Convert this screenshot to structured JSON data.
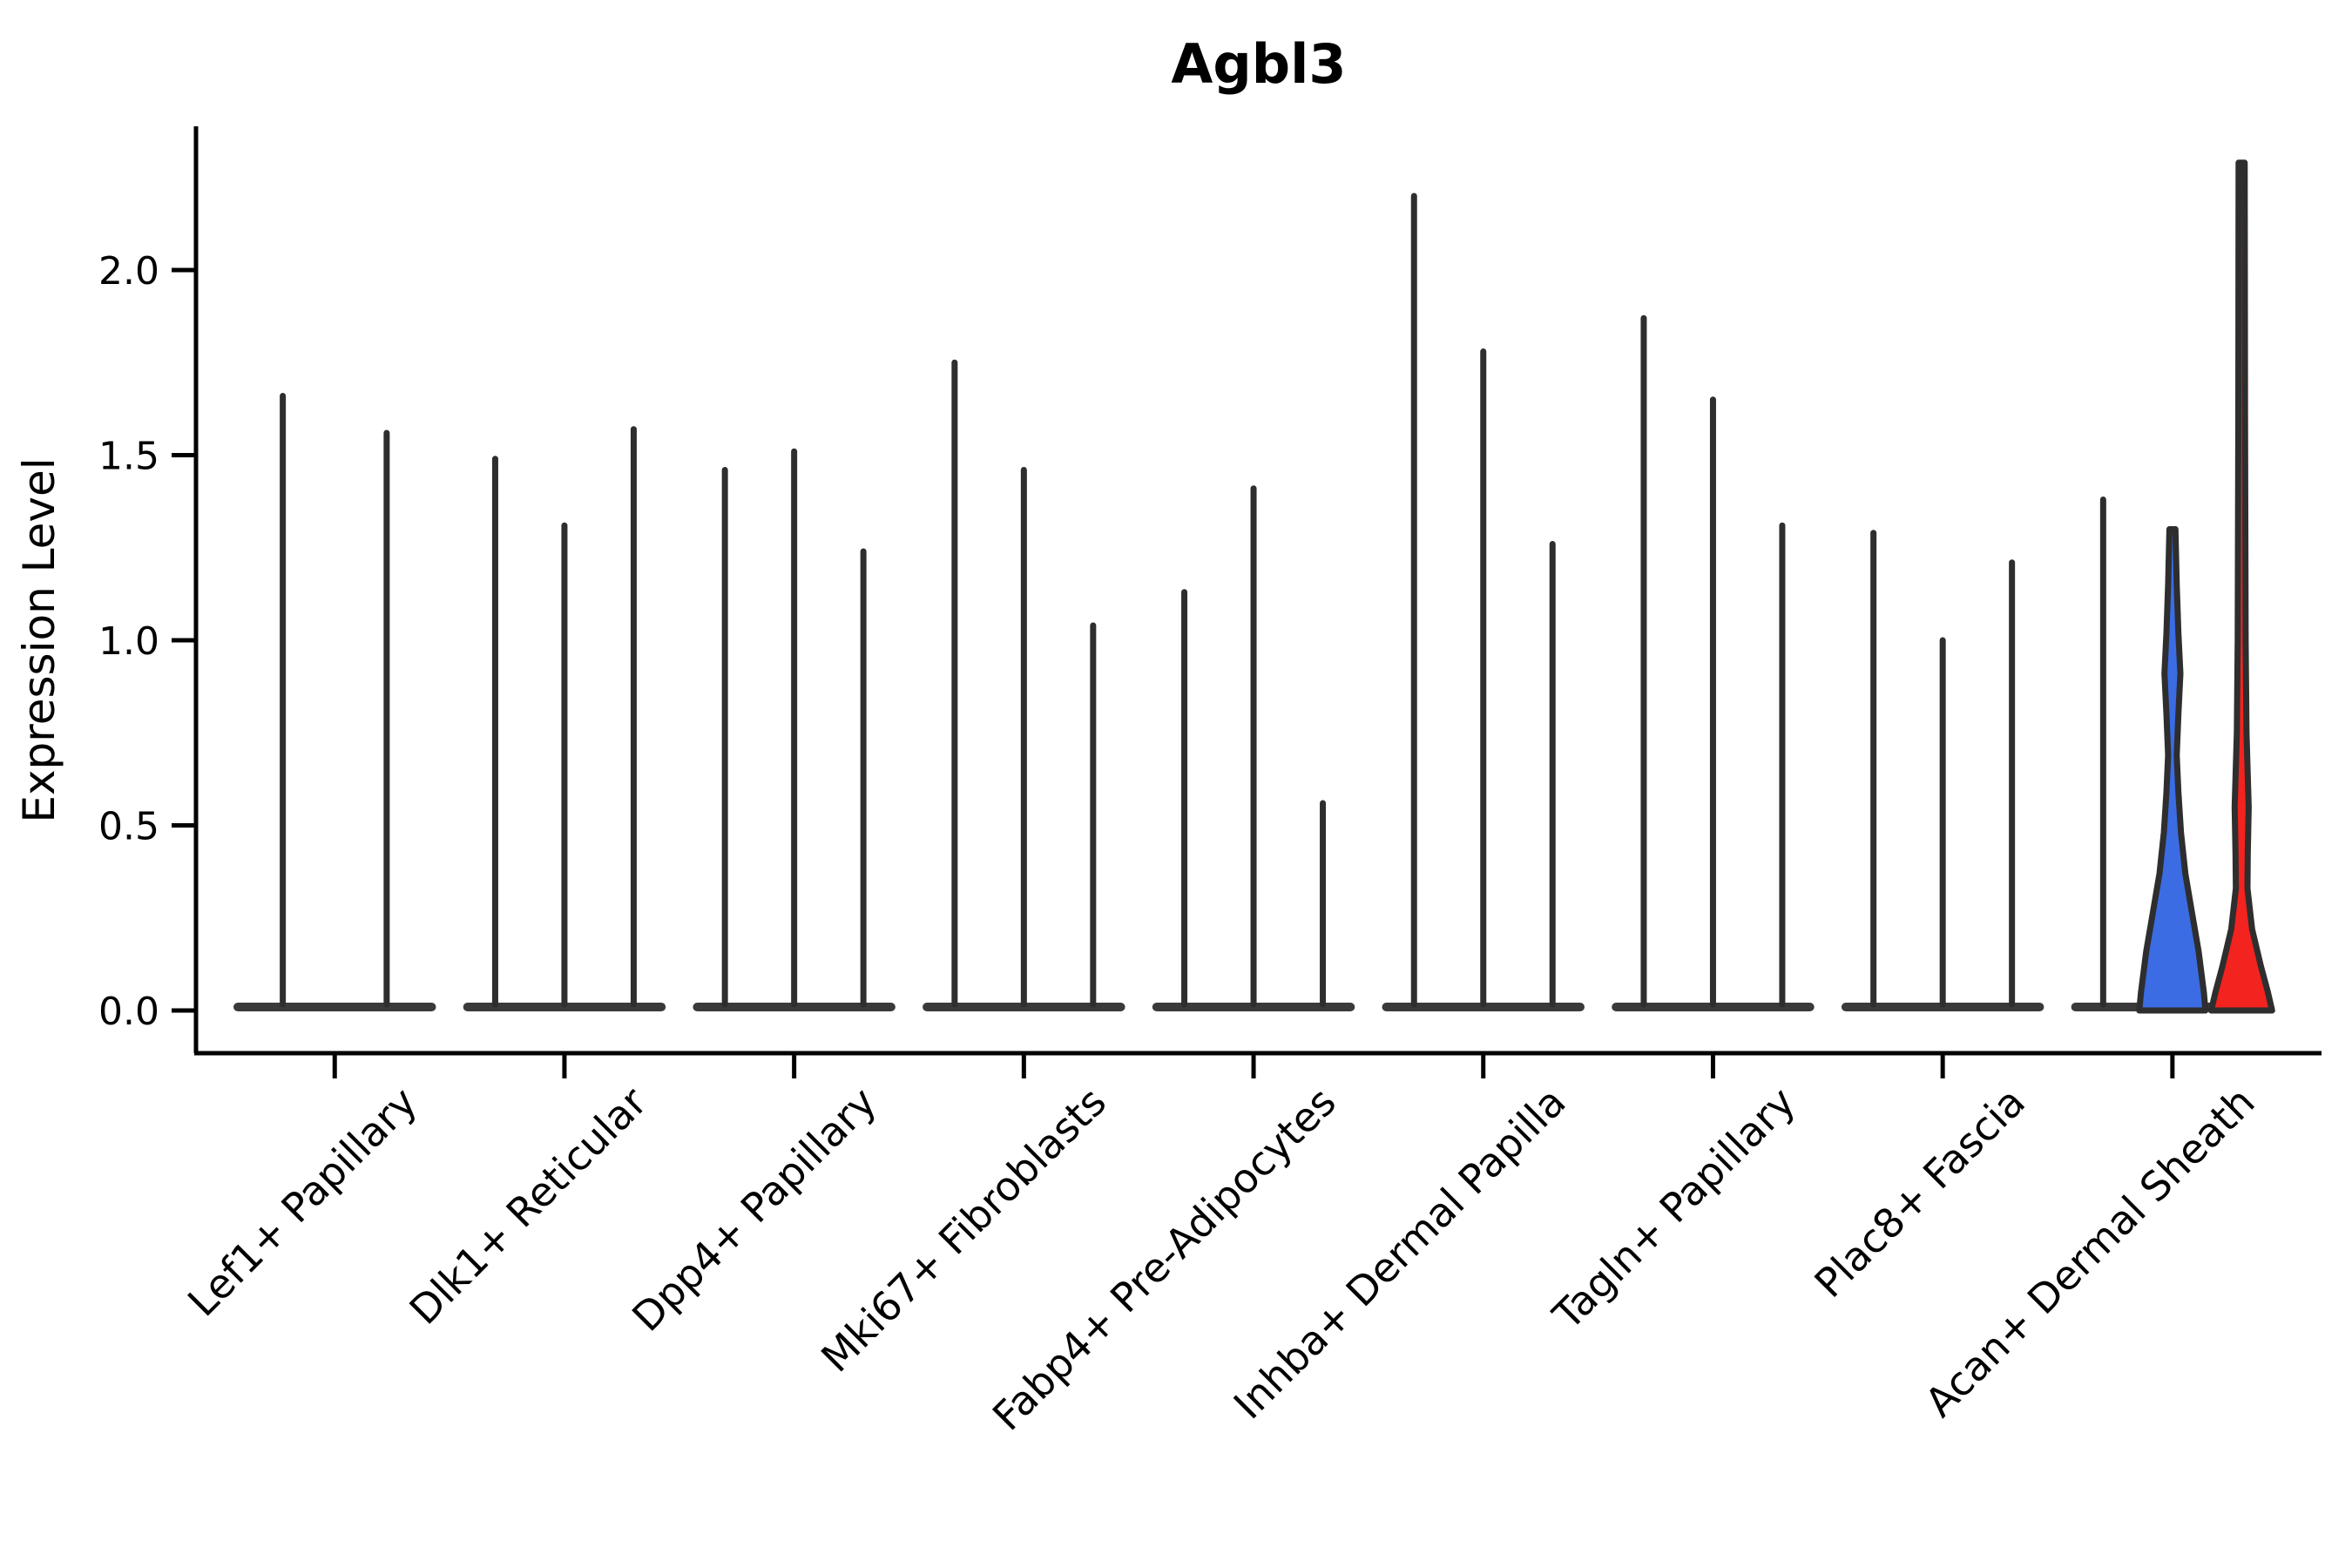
{
  "chart_data": {
    "type": "violin",
    "title": "Agbl3",
    "ylabel": "Expression Level",
    "xlabel": "",
    "grid": false,
    "legend": null,
    "ylim": [
      -0.12,
      2.39
    ],
    "yticks": [
      0.0,
      0.5,
      1.0,
      1.5,
      2.0
    ],
    "ytick_labels": [
      "0.0",
      "0.5",
      "1.0",
      "1.5",
      "2.0"
    ],
    "categories": [
      "Lef1+ Papillary",
      "Dlk1+ Reticular",
      "Dpp4+ Papillary",
      "Mki67+ Fibroblasts",
      "Fabp4+ Pre-Adipocytes",
      "Inhba+ Dermal Papilla",
      "Tagln+ Papillary",
      "Plac8+ Fascia",
      "Acan+ Dermal Sheath"
    ],
    "colors": {
      "spike": "#2e2e2e",
      "baseline": "#3a3a3a",
      "axis": "#000000",
      "outline": "#2e2e2e",
      "blue_violin": "#3b6ce4",
      "red_violin": "#f3231f"
    },
    "groups": [
      {
        "category": "Lef1+ Papillary",
        "violins": [
          {
            "max": 1.66
          },
          {
            "max": 1.56
          }
        ]
      },
      {
        "category": "Dlk1+ Reticular",
        "violins": [
          {
            "max": 1.49
          },
          {
            "max": 1.31
          },
          {
            "max": 1.57
          }
        ]
      },
      {
        "category": "Dpp4+ Papillary",
        "violins": [
          {
            "max": 1.46
          },
          {
            "max": 1.51
          },
          {
            "max": 1.24
          }
        ]
      },
      {
        "category": "Mki67+ Fibroblasts",
        "violins": [
          {
            "max": 1.75
          },
          {
            "max": 1.46
          },
          {
            "max": 1.04
          }
        ]
      },
      {
        "category": "Fabp4+ Pre-Adipocytes",
        "violins": [
          {
            "max": 1.13
          },
          {
            "max": 1.41
          },
          {
            "max": 0.56
          }
        ]
      },
      {
        "category": "Inhba+ Dermal Papilla",
        "violins": [
          {
            "max": 2.2
          },
          {
            "max": 1.78
          },
          {
            "max": 1.26
          }
        ]
      },
      {
        "category": "Tagln+ Papillary",
        "violins": [
          {
            "max": 1.87
          },
          {
            "max": 1.65
          },
          {
            "max": 1.31
          }
        ]
      },
      {
        "category": "Plac8+ Fascia",
        "violins": [
          {
            "max": 1.29
          },
          {
            "max": 1.0
          },
          {
            "max": 1.21
          }
        ]
      },
      {
        "category": "Acan+ Dermal Sheath",
        "violins": [
          {
            "max": 1.38
          },
          {
            "max": 1.3,
            "fill": "blue_violin",
            "base_halfwidth": 38,
            "profile": [
              [
                1.3,
                0.09
              ],
              [
                1.15,
                0.13
              ],
              [
                1.02,
                0.18
              ],
              [
                0.91,
                0.24
              ],
              [
                0.8,
                0.18
              ],
              [
                0.69,
                0.13
              ],
              [
                0.59,
                0.18
              ],
              [
                0.48,
                0.26
              ],
              [
                0.37,
                0.39
              ],
              [
                0.27,
                0.58
              ],
              [
                0.16,
                0.79
              ],
              [
                0.05,
                0.95
              ],
              [
                0.0,
                1.0
              ]
            ]
          },
          {
            "max": 2.29,
            "fill": "red_violin",
            "base_halfwidth": 35,
            "profile": [
              [
                2.29,
                0.1
              ],
              [
                1.6,
                0.11
              ],
              [
                1.0,
                0.13
              ],
              [
                0.75,
                0.16
              ],
              [
                0.55,
                0.23
              ],
              [
                0.42,
                0.2
              ],
              [
                0.33,
                0.19
              ],
              [
                0.22,
                0.34
              ],
              [
                0.12,
                0.63
              ],
              [
                0.05,
                0.86
              ],
              [
                0.0,
                1.0
              ]
            ]
          }
        ]
      }
    ]
  }
}
